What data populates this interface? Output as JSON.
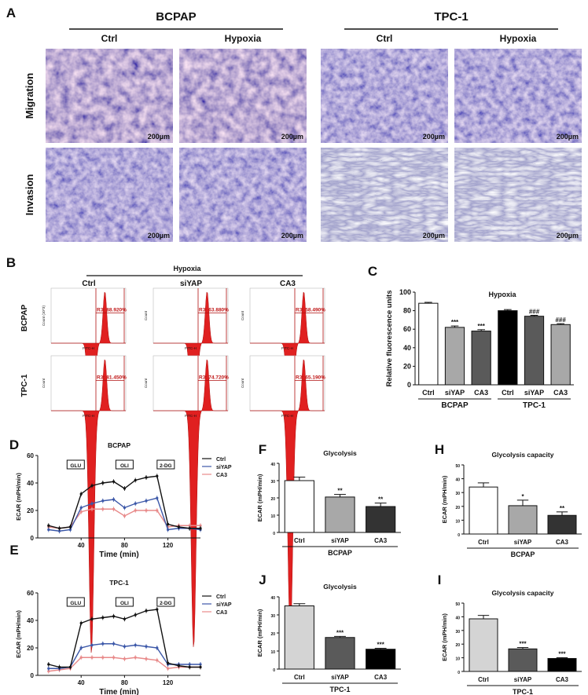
{
  "panel_a": {
    "label": "A",
    "groups": [
      {
        "name": "BCPAP",
        "columns": [
          "Ctrl",
          "Hypoxia"
        ]
      },
      {
        "name": "TPC-1",
        "columns": [
          "Ctrl",
          "Hypoxia"
        ]
      }
    ],
    "rows": [
      "Migration",
      "Invasion"
    ],
    "scale_bar": "200µm"
  },
  "panel_b": {
    "label": "B",
    "condition": "Hypoxia",
    "columns": [
      "Ctrl",
      "siYAP",
      "CA3"
    ],
    "rows": [
      {
        "name": "BCPAP",
        "gates": [
          "R3: 88.920%",
          "R3: 63.880%",
          "R3: 58.490%"
        ],
        "ylabels": [
          "Count (10^3)",
          "Count",
          "Count"
        ]
      },
      {
        "name": "TPC-1",
        "gates": [
          "R3: 81.450%",
          "R3: 74.720%",
          "R3: 65.190%"
        ],
        "ylabels": [
          "Count",
          "Count",
          "Count"
        ]
      }
    ],
    "xlabel": "FITC-H",
    "histogram_color": "#e02020"
  },
  "chart_data": [
    {
      "panel": "C",
      "type": "bar",
      "title": "Hypoxia",
      "ylabel": "Relative fluorescence units",
      "ylim": [
        0,
        100
      ],
      "yticks": [
        0,
        20,
        40,
        60,
        80,
        100
      ],
      "categories": [
        "Ctrl",
        "siYAP",
        "CA3",
        "Ctrl",
        "siYAP",
        "CA3"
      ],
      "values": [
        88,
        62,
        58,
        80,
        74,
        65
      ],
      "errors": [
        1,
        1.5,
        1.5,
        1.2,
        1,
        1
      ],
      "significance": [
        "",
        "***",
        "***",
        "",
        "###",
        "###"
      ],
      "groups": [
        {
          "name": "BCPAP",
          "members": [
            0,
            1,
            2
          ]
        },
        {
          "name": "TPC-1",
          "members": [
            3,
            4,
            5
          ]
        }
      ],
      "colors": [
        "#ffffff",
        "#a8a8a8",
        "#5a5a5a",
        "#000000",
        "#5a5a5a",
        "#a8a8a8"
      ]
    },
    {
      "panel": "D",
      "type": "line",
      "title": "BCPAP",
      "xlabel": "Time (min)",
      "ylabel": "ECAR (mPH/min)",
      "xlim": [
        0,
        150
      ],
      "ylim": [
        0,
        60
      ],
      "xticks": [
        40,
        80,
        120
      ],
      "yticks": [
        0,
        20,
        40,
        60
      ],
      "x": [
        10,
        20,
        30,
        40,
        50,
        60,
        70,
        80,
        90,
        100,
        110,
        120,
        130,
        140,
        150
      ],
      "series": [
        {
          "name": "Ctrl",
          "color": "#111111",
          "values": [
            9,
            7,
            8,
            32,
            38,
            40,
            41,
            36,
            42,
            44,
            45,
            10,
            8,
            7,
            7
          ]
        },
        {
          "name": "siYAP",
          "color": "#3b57a8",
          "values": [
            6,
            5,
            6,
            22,
            25,
            27,
            28,
            22,
            25,
            27,
            29,
            6,
            7,
            7,
            6
          ]
        },
        {
          "name": "CA3",
          "color": "#e88a8a",
          "values": [
            8,
            7,
            8,
            19,
            21,
            21,
            21,
            16,
            20,
            20,
            20,
            8,
            9,
            9,
            9
          ]
        }
      ],
      "annotations": [
        {
          "text": "GLU",
          "x": 35
        },
        {
          "text": "OLI",
          "x": 80
        },
        {
          "text": "2-DG",
          "x": 118
        }
      ]
    },
    {
      "panel": "E",
      "type": "line",
      "title": "TPC-1",
      "xlabel": "Time (min)",
      "ylabel": "ECAR (mPH/min)",
      "xlim": [
        0,
        150
      ],
      "ylim": [
        0,
        60
      ],
      "xticks": [
        40,
        80,
        120
      ],
      "yticks": [
        0,
        20,
        40,
        60
      ],
      "x": [
        10,
        20,
        30,
        40,
        50,
        60,
        70,
        80,
        90,
        100,
        110,
        120,
        130,
        140,
        150
      ],
      "series": [
        {
          "name": "Ctrl",
          "color": "#111111",
          "values": [
            8,
            6,
            6,
            38,
            41,
            42,
            43,
            41,
            44,
            47,
            48,
            9,
            7,
            6,
            6
          ]
        },
        {
          "name": "siYAP",
          "color": "#3b57a8",
          "values": [
            5,
            5,
            6,
            20,
            22,
            23,
            23,
            21,
            22,
            21,
            20,
            8,
            8,
            8,
            8
          ]
        },
        {
          "name": "CA3",
          "color": "#e88a8a",
          "values": [
            3,
            4,
            5,
            13,
            13,
            13,
            13,
            12,
            13,
            12,
            11,
            5,
            6,
            6,
            6
          ]
        }
      ],
      "annotations": [
        {
          "text": "GLU",
          "x": 35
        },
        {
          "text": "OLI",
          "x": 80
        },
        {
          "text": "2-DG",
          "x": 118
        }
      ]
    },
    {
      "panel": "F",
      "type": "bar",
      "title": "Glycolysis",
      "ylabel": "ECAR (mPH/min)",
      "ylim": [
        0,
        40
      ],
      "yticks": [
        0,
        10,
        20,
        30,
        40
      ],
      "categories": [
        "Ctrl",
        "siYAP",
        "CA3"
      ],
      "values": [
        30,
        20.5,
        15
      ],
      "errors": [
        2,
        1.5,
        2
      ],
      "significance": [
        "",
        "**",
        "**"
      ],
      "groups": [
        {
          "name": "BCPAP",
          "members": [
            0,
            1,
            2
          ]
        }
      ],
      "colors": [
        "#ffffff",
        "#a8a8a8",
        "#333333"
      ]
    },
    {
      "panel": "H",
      "type": "bar",
      "title": "Glycolysis capacity",
      "ylabel": "ECAR (mPH/min)",
      "ylim": [
        0,
        50
      ],
      "yticks": [
        0,
        10,
        20,
        30,
        40,
        50
      ],
      "categories": [
        "Ctrl",
        "siYAP",
        "CA3"
      ],
      "values": [
        34,
        20.5,
        13.5
      ],
      "errors": [
        3,
        4,
        2.5
      ],
      "significance": [
        "",
        "*",
        "**"
      ],
      "groups": [
        {
          "name": "BCPAP",
          "members": [
            0,
            1,
            2
          ]
        }
      ],
      "colors": [
        "#ffffff",
        "#a8a8a8",
        "#333333"
      ]
    },
    {
      "panel": "J",
      "type": "bar",
      "title": "Glycolysis",
      "ylabel": "ECAR (mPH/min)",
      "ylim": [
        0,
        40
      ],
      "yticks": [
        0,
        10,
        20,
        30,
        40
      ],
      "categories": [
        "Ctrl",
        "siYAP",
        "CA3"
      ],
      "values": [
        35,
        17.5,
        11
      ],
      "errors": [
        1.2,
        0.6,
        0.5
      ],
      "significance": [
        "",
        "***",
        "***"
      ],
      "groups": [
        {
          "name": "TPC-1",
          "members": [
            0,
            1,
            2
          ]
        }
      ],
      "colors": [
        "#d4d4d4",
        "#5a5a5a",
        "#000000"
      ]
    },
    {
      "panel": "I",
      "type": "bar",
      "title": "Glycolysis capacity",
      "ylabel": "ECAR (mPH/min)",
      "ylim": [
        0,
        50
      ],
      "yticks": [
        0,
        10,
        20,
        30,
        40,
        50
      ],
      "categories": [
        "Ctrl",
        "siYAP",
        "CA3"
      ],
      "values": [
        38.5,
        16.5,
        9.5
      ],
      "errors": [
        2.5,
        1,
        0.6
      ],
      "significance": [
        "",
        "***",
        "***"
      ],
      "groups": [
        {
          "name": "TPC-1",
          "members": [
            0,
            1,
            2
          ]
        }
      ],
      "colors": [
        "#d4d4d4",
        "#5a5a5a",
        "#000000"
      ]
    }
  ]
}
